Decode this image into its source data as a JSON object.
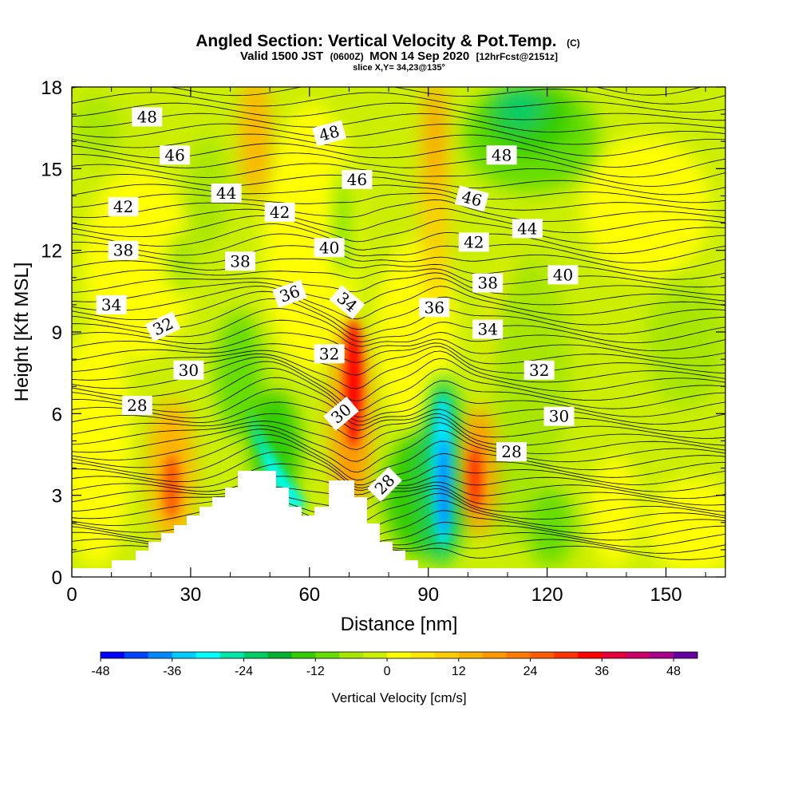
{
  "title": {
    "main": "Angled Section: Vertical Velocity & Pot.Temp.",
    "main_suffix": "(C)",
    "sub_pre": "Valid 1500 JST",
    "sub_small1": "(0600Z)",
    "sub_mid": "MON 14 Sep 2020",
    "sub_small2": "[12hrFcst@2151z]",
    "slice": "slice X,Y= 34,23@135°"
  },
  "chart_data": {
    "type": "heatmap",
    "xlabel": "Distance [nm]",
    "ylabel": "Height [Kft MSL]",
    "xlim": [
      0,
      165
    ],
    "ylim": [
      0,
      18
    ],
    "x_ticks": [
      "0",
      "30",
      "60",
      "90",
      "120",
      "150"
    ],
    "x_tick_values": [
      0,
      30,
      60,
      90,
      120,
      150
    ],
    "y_ticks": [
      "0",
      "3",
      "6",
      "9",
      "12",
      "15",
      "18"
    ],
    "y_tick_values": [
      0,
      3,
      6,
      9,
      12,
      15,
      18
    ],
    "colorbar": {
      "title": "Vertical Velocity [cm/s]",
      "range": [
        -48,
        52
      ],
      "labels": [
        "-48",
        "-36",
        "-24",
        "-12",
        "0",
        "12",
        "24",
        "36",
        "48"
      ],
      "label_values": [
        -48,
        -36,
        -24,
        -12,
        0,
        12,
        24,
        36,
        48
      ],
      "colors": [
        "#0000ff",
        "#0044ff",
        "#0088ff",
        "#00ccff",
        "#00ffff",
        "#00e6aa",
        "#00cc66",
        "#00b22e",
        "#33cc00",
        "#66dd00",
        "#a8e600",
        "#ccee00",
        "#ffff00",
        "#ffe600",
        "#ffcc00",
        "#ffb300",
        "#ff9900",
        "#ff7a00",
        "#ff5a00",
        "#ff3300",
        "#ff0000",
        "#e6003a",
        "#cc0066",
        "#a8008a",
        "#6600a0"
      ]
    },
    "theta_labels": [
      {
        "text": "48",
        "x": 19,
        "y": 16.9,
        "angle": 0
      },
      {
        "text": "46",
        "x": 26,
        "y": 15.5,
        "angle": 0
      },
      {
        "text": "44",
        "x": 39,
        "y": 14.1,
        "angle": 0
      },
      {
        "text": "42",
        "x": 13,
        "y": 13.6,
        "angle": 0
      },
      {
        "text": "38",
        "x": 13,
        "y": 12.0,
        "angle": 0
      },
      {
        "text": "34",
        "x": 10,
        "y": 10.0,
        "angle": 0
      },
      {
        "text": "32",
        "x": 23,
        "y": 9.2,
        "angle": -25
      },
      {
        "text": "30",
        "x": 29.5,
        "y": 7.6,
        "angle": 0
      },
      {
        "text": "28",
        "x": 16.5,
        "y": 6.3,
        "angle": 0
      },
      {
        "text": "38",
        "x": 42.5,
        "y": 11.6,
        "angle": 0
      },
      {
        "text": "36",
        "x": 55,
        "y": 10.4,
        "angle": -20
      },
      {
        "text": "42",
        "x": 52.5,
        "y": 13.4,
        "angle": 0
      },
      {
        "text": "40",
        "x": 65,
        "y": 12.1,
        "angle": 0
      },
      {
        "text": "48",
        "x": 65,
        "y": 16.3,
        "angle": -15
      },
      {
        "text": "46",
        "x": 72,
        "y": 14.6,
        "angle": 0
      },
      {
        "text": "34",
        "x": 69.5,
        "y": 10.1,
        "angle": 40
      },
      {
        "text": "32",
        "x": 65,
        "y": 8.2,
        "angle": 0
      },
      {
        "text": "30",
        "x": 68,
        "y": 6.0,
        "angle": -40
      },
      {
        "text": "28",
        "x": 79,
        "y": 3.4,
        "angle": -45
      },
      {
        "text": "36",
        "x": 91.5,
        "y": 9.9,
        "angle": 0
      },
      {
        "text": "38",
        "x": 105,
        "y": 10.8,
        "angle": 0
      },
      {
        "text": "34",
        "x": 105,
        "y": 9.1,
        "angle": 0
      },
      {
        "text": "42",
        "x": 101.5,
        "y": 12.3,
        "angle": 0
      },
      {
        "text": "46",
        "x": 101,
        "y": 13.9,
        "angle": 15
      },
      {
        "text": "48",
        "x": 108.5,
        "y": 15.5,
        "angle": 0
      },
      {
        "text": "44",
        "x": 115,
        "y": 12.8,
        "angle": 0
      },
      {
        "text": "40",
        "x": 124,
        "y": 11.1,
        "angle": 0
      },
      {
        "text": "32",
        "x": 118,
        "y": 7.6,
        "angle": 0
      },
      {
        "text": "30",
        "x": 123,
        "y": 5.9,
        "angle": 0
      },
      {
        "text": "28",
        "x": 111,
        "y": 4.6,
        "angle": 0
      }
    ],
    "terrain_note": ""
  }
}
